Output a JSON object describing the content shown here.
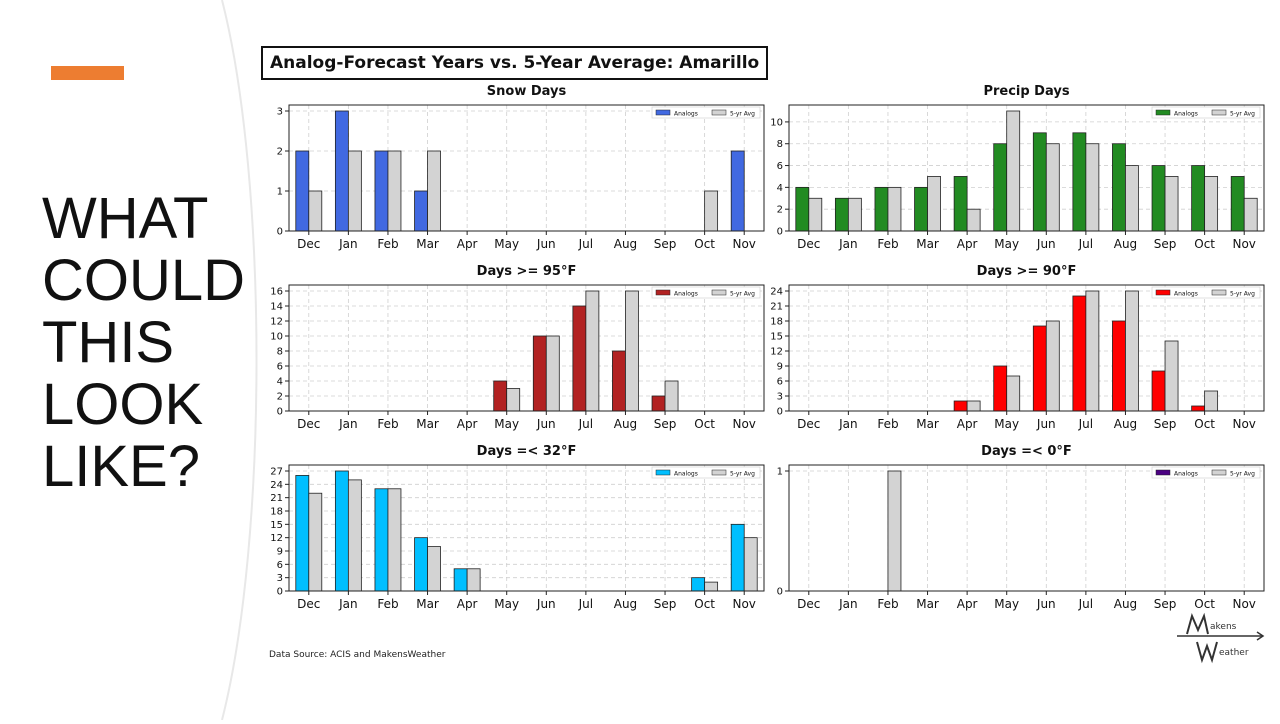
{
  "slide": {
    "heading_lines": [
      "WHAT",
      "COULD",
      "THIS",
      "LOOK",
      "LIKE?"
    ],
    "accent_color": "#ED7D31",
    "main_title": "Analog-Forecast Years vs. 5-Year Average: Amarillo",
    "data_source": "Data Source: ACIS and MakensWeather",
    "logo_text": {
      "top": "akens",
      "bottom": "eather"
    }
  },
  "chart_data": [
    {
      "type": "bar",
      "title": "Snow Days",
      "categories": [
        "Dec",
        "Jan",
        "Feb",
        "Mar",
        "Apr",
        "May",
        "Jun",
        "Jul",
        "Aug",
        "Sep",
        "Oct",
        "Nov"
      ],
      "ylim": [
        0,
        3.15
      ],
      "yticks": [
        0,
        1,
        2,
        3
      ],
      "grid": true,
      "legend_position": "top-right",
      "series": [
        {
          "name": "Analogs",
          "color": "#4169E1",
          "values": [
            2,
            3,
            2,
            1,
            0,
            0,
            0,
            0,
            0,
            0,
            0,
            2
          ]
        },
        {
          "name": "5-yr Avg",
          "color": "#D3D3D3",
          "values": [
            1,
            2,
            2,
            2,
            0,
            0,
            0,
            0,
            0,
            0,
            1,
            0
          ]
        }
      ]
    },
    {
      "type": "bar",
      "title": "Precip Days",
      "categories": [
        "Dec",
        "Jan",
        "Feb",
        "Mar",
        "Apr",
        "May",
        "Jun",
        "Jul",
        "Aug",
        "Sep",
        "Oct",
        "Nov"
      ],
      "ylim": [
        0,
        11.55
      ],
      "yticks": [
        0,
        2,
        4,
        6,
        8,
        10
      ],
      "grid": true,
      "legend_position": "top-right",
      "series": [
        {
          "name": "Analogs",
          "color": "#228B22",
          "values": [
            4,
            3,
            4,
            4,
            5,
            8,
            9,
            9,
            8,
            6,
            6,
            5
          ]
        },
        {
          "name": "5-yr Avg",
          "color": "#D3D3D3",
          "values": [
            3,
            3,
            4,
            5,
            2,
            11,
            8,
            8,
            6,
            5,
            5,
            3
          ]
        }
      ]
    },
    {
      "type": "bar",
      "title": "Days >= 95°F",
      "categories": [
        "Dec",
        "Jan",
        "Feb",
        "Mar",
        "Apr",
        "May",
        "Jun",
        "Jul",
        "Aug",
        "Sep",
        "Oct",
        "Nov"
      ],
      "ylim": [
        0,
        16.8
      ],
      "yticks": [
        0,
        2,
        4,
        6,
        8,
        10,
        12,
        14,
        16
      ],
      "grid": true,
      "legend_position": "top-right",
      "series": [
        {
          "name": "Analogs",
          "color": "#B22222",
          "values": [
            0,
            0,
            0,
            0,
            0,
            4,
            10,
            14,
            8,
            2,
            0,
            0
          ]
        },
        {
          "name": "5-yr Avg",
          "color": "#D3D3D3",
          "values": [
            0,
            0,
            0,
            0,
            0,
            3,
            10,
            16,
            16,
            4,
            0,
            0
          ]
        }
      ]
    },
    {
      "type": "bar",
      "title": "Days >= 90°F",
      "categories": [
        "Dec",
        "Jan",
        "Feb",
        "Mar",
        "Apr",
        "May",
        "Jun",
        "Jul",
        "Aug",
        "Sep",
        "Oct",
        "Nov"
      ],
      "ylim": [
        0,
        25.2
      ],
      "yticks": [
        0,
        3,
        6,
        9,
        12,
        15,
        18,
        21,
        24
      ],
      "grid": true,
      "legend_position": "top-right",
      "series": [
        {
          "name": "Analogs",
          "color": "#FF0000",
          "values": [
            0,
            0,
            0,
            0,
            2,
            9,
            17,
            23,
            18,
            8,
            1,
            0
          ]
        },
        {
          "name": "5-yr Avg",
          "color": "#D3D3D3",
          "values": [
            0,
            0,
            0,
            0,
            2,
            7,
            18,
            24,
            24,
            14,
            4,
            0
          ]
        }
      ]
    },
    {
      "type": "bar",
      "title": "Days =< 32°F",
      "categories": [
        "Dec",
        "Jan",
        "Feb",
        "Mar",
        "Apr",
        "May",
        "Jun",
        "Jul",
        "Aug",
        "Sep",
        "Oct",
        "Nov"
      ],
      "ylim": [
        0,
        28.35
      ],
      "yticks": [
        0,
        3,
        6,
        9,
        12,
        15,
        18,
        21,
        24,
        27
      ],
      "grid": true,
      "legend_position": "top-right",
      "series": [
        {
          "name": "Analogs",
          "color": "#00BFFF",
          "values": [
            26,
            27,
            23,
            12,
            5,
            0,
            0,
            0,
            0,
            0,
            3,
            15
          ]
        },
        {
          "name": "5-yr Avg",
          "color": "#D3D3D3",
          "values": [
            22,
            25,
            23,
            10,
            5,
            0,
            0,
            0,
            0,
            0,
            2,
            12
          ]
        }
      ]
    },
    {
      "type": "bar",
      "title": "Days =< 0°F",
      "categories": [
        "Dec",
        "Jan",
        "Feb",
        "Mar",
        "Apr",
        "May",
        "Jun",
        "Jul",
        "Aug",
        "Sep",
        "Oct",
        "Nov"
      ],
      "ylim": [
        0,
        1.05
      ],
      "yticks": [
        0,
        1
      ],
      "grid": true,
      "legend_position": "top-right",
      "series": [
        {
          "name": "Analogs",
          "color": "#4B0082",
          "values": [
            0,
            0,
            0,
            0,
            0,
            0,
            0,
            0,
            0,
            0,
            0,
            0
          ]
        },
        {
          "name": "5-yr Avg",
          "color": "#D3D3D3",
          "values": [
            0,
            0,
            1,
            0,
            0,
            0,
            0,
            0,
            0,
            0,
            0,
            0
          ]
        }
      ]
    }
  ]
}
